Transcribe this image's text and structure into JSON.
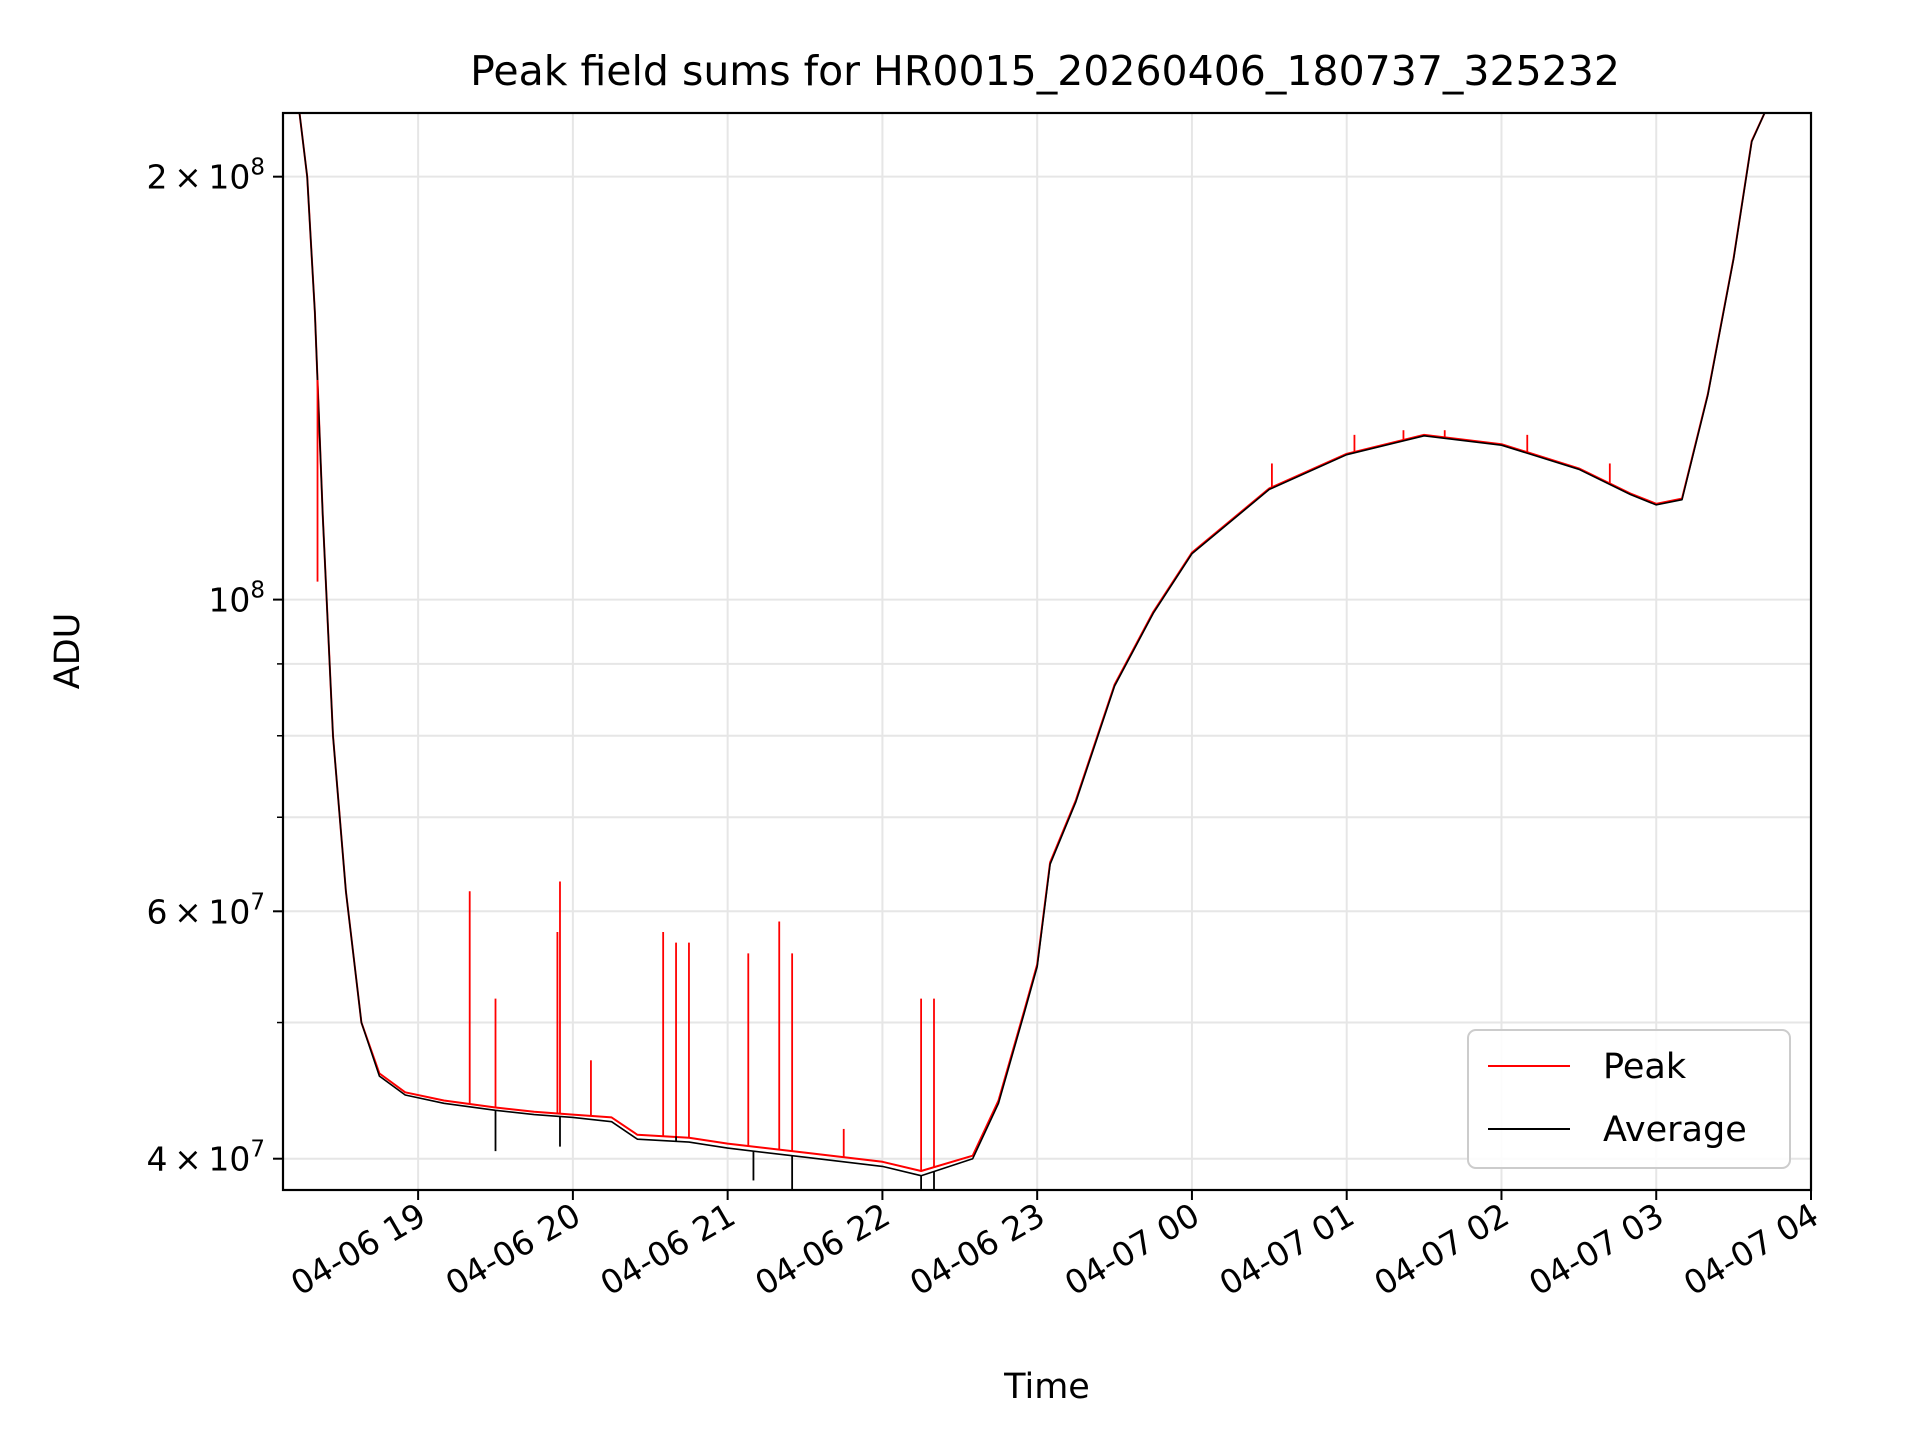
{
  "chart_data": {
    "type": "line",
    "title": "Peak field sums for HR0015_20260406_180737_325232",
    "xlabel": "Time",
    "ylabel": "ADU",
    "x_scale": "time",
    "y_scale": "log",
    "xlim": [
      "2026-04-06T18:07:37",
      "2026-04-07T04:00:00"
    ],
    "ylim": [
      38000000,
      222000000
    ],
    "x_ticks": [
      {
        "t": "2026-04-06T19:00",
        "label": "04-06 19"
      },
      {
        "t": "2026-04-06T20:00",
        "label": "04-06 20"
      },
      {
        "t": "2026-04-06T21:00",
        "label": "04-06 21"
      },
      {
        "t": "2026-04-06T22:00",
        "label": "04-06 22"
      },
      {
        "t": "2026-04-06T23:00",
        "label": "04-06 23"
      },
      {
        "t": "2026-04-07T00:00",
        "label": "04-07 00"
      },
      {
        "t": "2026-04-07T01:00",
        "label": "04-07 01"
      },
      {
        "t": "2026-04-07T02:00",
        "label": "04-07 02"
      },
      {
        "t": "2026-04-07T03:00",
        "label": "04-07 03"
      },
      {
        "t": "2026-04-07T04:00",
        "label": "04-07 04"
      }
    ],
    "y_major_ticks": [
      {
        "v": 40000000,
        "mantissa": "4",
        "exp": "7"
      },
      {
        "v": 60000000,
        "mantissa": "6",
        "exp": "7"
      },
      {
        "v": 100000000,
        "mantissa": "",
        "exp": "8"
      },
      {
        "v": 200000000,
        "mantissa": "2",
        "exp": "8"
      }
    ],
    "y_minor_ticks": [
      50000000,
      70000000,
      80000000,
      90000000
    ],
    "grid": true,
    "legend_position": "bottom-right",
    "series": [
      {
        "name": "Peak",
        "color": "#ff0000",
        "points": [
          [
            "2026-04-06T18:07:37",
            222000000
          ],
          [
            "2026-04-06T18:14",
            222000000
          ],
          [
            "2026-04-06T18:17",
            200000000
          ],
          [
            "2026-04-06T18:20",
            160000000
          ],
          [
            "2026-04-06T18:23",
            115000000
          ],
          [
            "2026-04-06T18:27",
            80000000
          ],
          [
            "2026-04-06T18:32",
            62000000
          ],
          [
            "2026-04-06T18:38",
            50000000
          ],
          [
            "2026-04-06T18:45",
            46000000
          ],
          [
            "2026-04-06T18:55",
            44600000
          ],
          [
            "2026-04-06T19:10",
            44000000
          ],
          [
            "2026-04-06T19:30",
            43500000
          ],
          [
            "2026-04-06T19:45",
            43200000
          ],
          [
            "2026-04-06T20:00",
            43000000
          ],
          [
            "2026-04-06T20:15",
            42800000
          ],
          [
            "2026-04-06T20:25",
            41600000
          ],
          [
            "2026-04-06T20:45",
            41400000
          ],
          [
            "2026-04-06T21:00",
            41000000
          ],
          [
            "2026-04-06T21:30",
            40400000
          ],
          [
            "2026-04-06T22:00",
            39800000
          ],
          [
            "2026-04-06T22:15",
            39200000
          ],
          [
            "2026-04-06T22:35",
            40200000
          ],
          [
            "2026-04-06T22:45",
            44000000
          ],
          [
            "2026-04-06T22:55",
            51000000
          ],
          [
            "2026-04-06T23:00",
            55000000
          ],
          [
            "2026-04-06T23:05",
            65000000
          ],
          [
            "2026-04-06T23:15",
            72000000
          ],
          [
            "2026-04-06T23:30",
            87000000
          ],
          [
            "2026-04-06T23:45",
            98000000
          ],
          [
            "2026-04-07T00:00",
            108000000
          ],
          [
            "2026-04-07T00:30",
            120000000
          ],
          [
            "2026-04-07T01:00",
            127000000
          ],
          [
            "2026-04-07T01:30",
            131000000
          ],
          [
            "2026-04-07T02:00",
            129000000
          ],
          [
            "2026-04-07T02:30",
            124000000
          ],
          [
            "2026-04-07T02:50",
            119000000
          ],
          [
            "2026-04-07T03:00",
            117000000
          ],
          [
            "2026-04-07T03:10",
            118000000
          ],
          [
            "2026-04-07T03:20",
            140000000
          ],
          [
            "2026-04-07T03:30",
            175000000
          ],
          [
            "2026-04-07T03:37",
            212000000
          ],
          [
            "2026-04-07T03:42",
            222000000
          ],
          [
            "2026-04-07T04:00",
            222000000
          ]
        ],
        "spikes": [
          [
            "2026-04-06T18:21",
            103000000
          ],
          [
            "2026-04-06T19:20",
            62000000
          ],
          [
            "2026-04-06T19:30",
            52000000
          ],
          [
            "2026-04-06T19:54",
            58000000
          ],
          [
            "2026-04-06T19:55",
            63000000
          ],
          [
            "2026-04-06T20:07",
            47000000
          ],
          [
            "2026-04-06T20:35",
            58000000
          ],
          [
            "2026-04-06T20:40",
            57000000
          ],
          [
            "2026-04-06T20:45",
            57000000
          ],
          [
            "2026-04-06T21:08",
            56000000
          ],
          [
            "2026-04-06T21:20",
            59000000
          ],
          [
            "2026-04-06T21:25",
            56000000
          ],
          [
            "2026-04-06T21:45",
            42000000
          ],
          [
            "2026-04-06T22:15",
            52000000
          ],
          [
            "2026-04-06T22:20",
            52000000
          ],
          [
            "2026-04-07T00:31",
            125000000
          ],
          [
            "2026-04-07T01:03",
            131000000
          ],
          [
            "2026-04-07T01:22",
            132000000
          ],
          [
            "2026-04-07T01:38",
            132000000
          ],
          [
            "2026-04-07T02:10",
            131000000
          ],
          [
            "2026-04-07T02:42",
            125000000
          ]
        ]
      },
      {
        "name": "Average",
        "color": "#000000",
        "points": [
          [
            "2026-04-06T18:07:37",
            222000000
          ],
          [
            "2026-04-06T18:14",
            222000000
          ],
          [
            "2026-04-06T18:17",
            200000000
          ],
          [
            "2026-04-06T18:20",
            160000000
          ],
          [
            "2026-04-06T18:23",
            115000000
          ],
          [
            "2026-04-06T18:27",
            80000000
          ],
          [
            "2026-04-06T18:32",
            62000000
          ],
          [
            "2026-04-06T18:38",
            50000000
          ],
          [
            "2026-04-06T18:45",
            45800000
          ],
          [
            "2026-04-06T18:55",
            44400000
          ],
          [
            "2026-04-06T19:10",
            43800000
          ],
          [
            "2026-04-06T19:30",
            43300000
          ],
          [
            "2026-04-06T19:45",
            43000000
          ],
          [
            "2026-04-06T20:00",
            42800000
          ],
          [
            "2026-04-06T20:15",
            42500000
          ],
          [
            "2026-04-06T20:25",
            41300000
          ],
          [
            "2026-04-06T20:45",
            41100000
          ],
          [
            "2026-04-06T21:00",
            40700000
          ],
          [
            "2026-04-06T21:30",
            40100000
          ],
          [
            "2026-04-06T22:00",
            39500000
          ],
          [
            "2026-04-06T22:15",
            38900000
          ],
          [
            "2026-04-06T22:35",
            40000000
          ],
          [
            "2026-04-06T22:45",
            43800000
          ],
          [
            "2026-04-06T22:55",
            50800000
          ],
          [
            "2026-04-06T23:00",
            54800000
          ],
          [
            "2026-04-06T23:05",
            64800000
          ],
          [
            "2026-04-06T23:15",
            71800000
          ],
          [
            "2026-04-06T23:30",
            86800000
          ],
          [
            "2026-04-06T23:45",
            97800000
          ],
          [
            "2026-04-07T00:00",
            107800000
          ],
          [
            "2026-04-07T00:30",
            119800000
          ],
          [
            "2026-04-07T01:00",
            126800000
          ],
          [
            "2026-04-07T01:30",
            130800000
          ],
          [
            "2026-04-07T02:00",
            128800000
          ],
          [
            "2026-04-07T02:30",
            123800000
          ],
          [
            "2026-04-07T02:50",
            118800000
          ],
          [
            "2026-04-07T03:00",
            116800000
          ],
          [
            "2026-04-07T03:10",
            117800000
          ],
          [
            "2026-04-07T03:20",
            139800000
          ],
          [
            "2026-04-07T03:30",
            174800000
          ],
          [
            "2026-04-07T03:37",
            211800000
          ],
          [
            "2026-04-07T03:42",
            222000000
          ],
          [
            "2026-04-07T04:00",
            222000000
          ]
        ],
        "dips": [
          [
            "2026-04-06T19:30",
            40500000
          ],
          [
            "2026-04-06T19:55",
            40800000
          ],
          [
            "2026-04-06T20:40",
            41500000
          ],
          [
            "2026-04-06T21:10",
            38600000
          ],
          [
            "2026-04-06T21:25",
            37000000
          ],
          [
            "2026-04-06T22:15",
            38000000
          ],
          [
            "2026-04-06T22:20",
            38000000
          ]
        ]
      }
    ]
  }
}
